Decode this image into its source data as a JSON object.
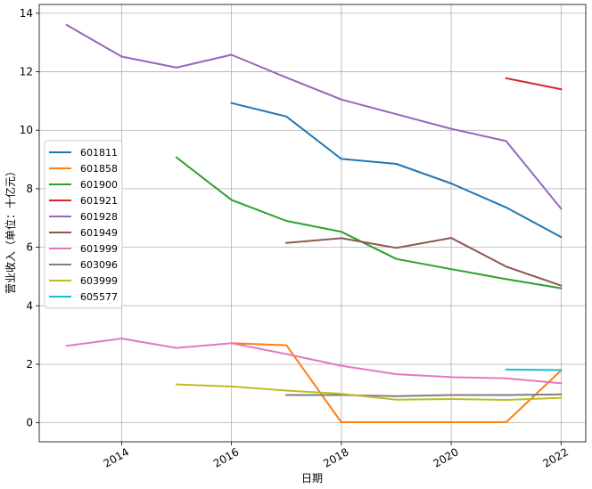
{
  "chart_data": {
    "type": "line",
    "xlabel": "日期",
    "ylabel": "营业收入（单位：十亿元）",
    "xlim": [
      2012.5,
      2022.45
    ],
    "ylim": [
      -0.65,
      14.3
    ],
    "xticks": [
      2014,
      2016,
      2018,
      2020,
      2022
    ],
    "yticks": [
      0,
      2,
      4,
      6,
      8,
      10,
      12,
      14
    ],
    "grid": true,
    "legend_position": "center-left",
    "series": [
      {
        "name": "601811",
        "color": "#1f77b4",
        "x": [
          2016,
          2017,
          2018,
          2019,
          2020,
          2021,
          2022
        ],
        "values": [
          10.93,
          10.47,
          9.02,
          8.85,
          8.18,
          7.36,
          6.35
        ]
      },
      {
        "name": "601858",
        "color": "#ff7f0e",
        "x": [
          2016,
          2017,
          2018,
          2019,
          2020,
          2021,
          2022
        ],
        "values": [
          2.72,
          2.65,
          0.02,
          0.02,
          0.02,
          0.02,
          1.79
        ]
      },
      {
        "name": "601900",
        "color": "#2ca02c",
        "x": [
          2015,
          2016,
          2017,
          2018,
          2019,
          2020,
          2021,
          2022
        ],
        "values": [
          9.07,
          7.62,
          6.9,
          6.53,
          5.6,
          5.25,
          4.91,
          4.6
        ]
      },
      {
        "name": "601921",
        "color": "#d62728",
        "x": [
          2021,
          2022
        ],
        "values": [
          11.78,
          11.4
        ]
      },
      {
        "name": "601928",
        "color": "#9467bd",
        "x": [
          2013,
          2014,
          2015,
          2016,
          2017,
          2018,
          2019,
          2020,
          2021,
          2022
        ],
        "values": [
          13.6,
          12.52,
          12.14,
          12.58,
          11.8,
          11.05,
          10.55,
          10.05,
          9.63,
          7.32
        ]
      },
      {
        "name": "601949",
        "color": "#8c564b",
        "x": [
          2017,
          2018,
          2019,
          2020,
          2021,
          2022
        ],
        "values": [
          6.15,
          6.31,
          5.98,
          6.32,
          5.34,
          4.69
        ]
      },
      {
        "name": "601999",
        "color": "#e377c2",
        "x": [
          2013,
          2014,
          2015,
          2016,
          2017,
          2018,
          2019,
          2020,
          2021,
          2022
        ],
        "values": [
          2.63,
          2.88,
          2.56,
          2.72,
          2.35,
          1.95,
          1.66,
          1.56,
          1.52,
          1.35
        ]
      },
      {
        "name": "603096",
        "color": "#7f7f7f",
        "x": [
          2017,
          2018,
          2019,
          2020,
          2021,
          2022
        ],
        "values": [
          0.95,
          0.95,
          0.91,
          0.95,
          0.95,
          0.97
        ]
      },
      {
        "name": "603999",
        "color": "#bcbd22",
        "x": [
          2015,
          2016,
          2017,
          2018,
          2019,
          2020,
          2021,
          2022
        ],
        "values": [
          1.31,
          1.24,
          1.1,
          0.99,
          0.79,
          0.81,
          0.78,
          0.85
        ]
      },
      {
        "name": "605577",
        "color": "#17becf",
        "x": [
          2021,
          2022
        ],
        "values": [
          1.82,
          1.8
        ]
      }
    ]
  }
}
